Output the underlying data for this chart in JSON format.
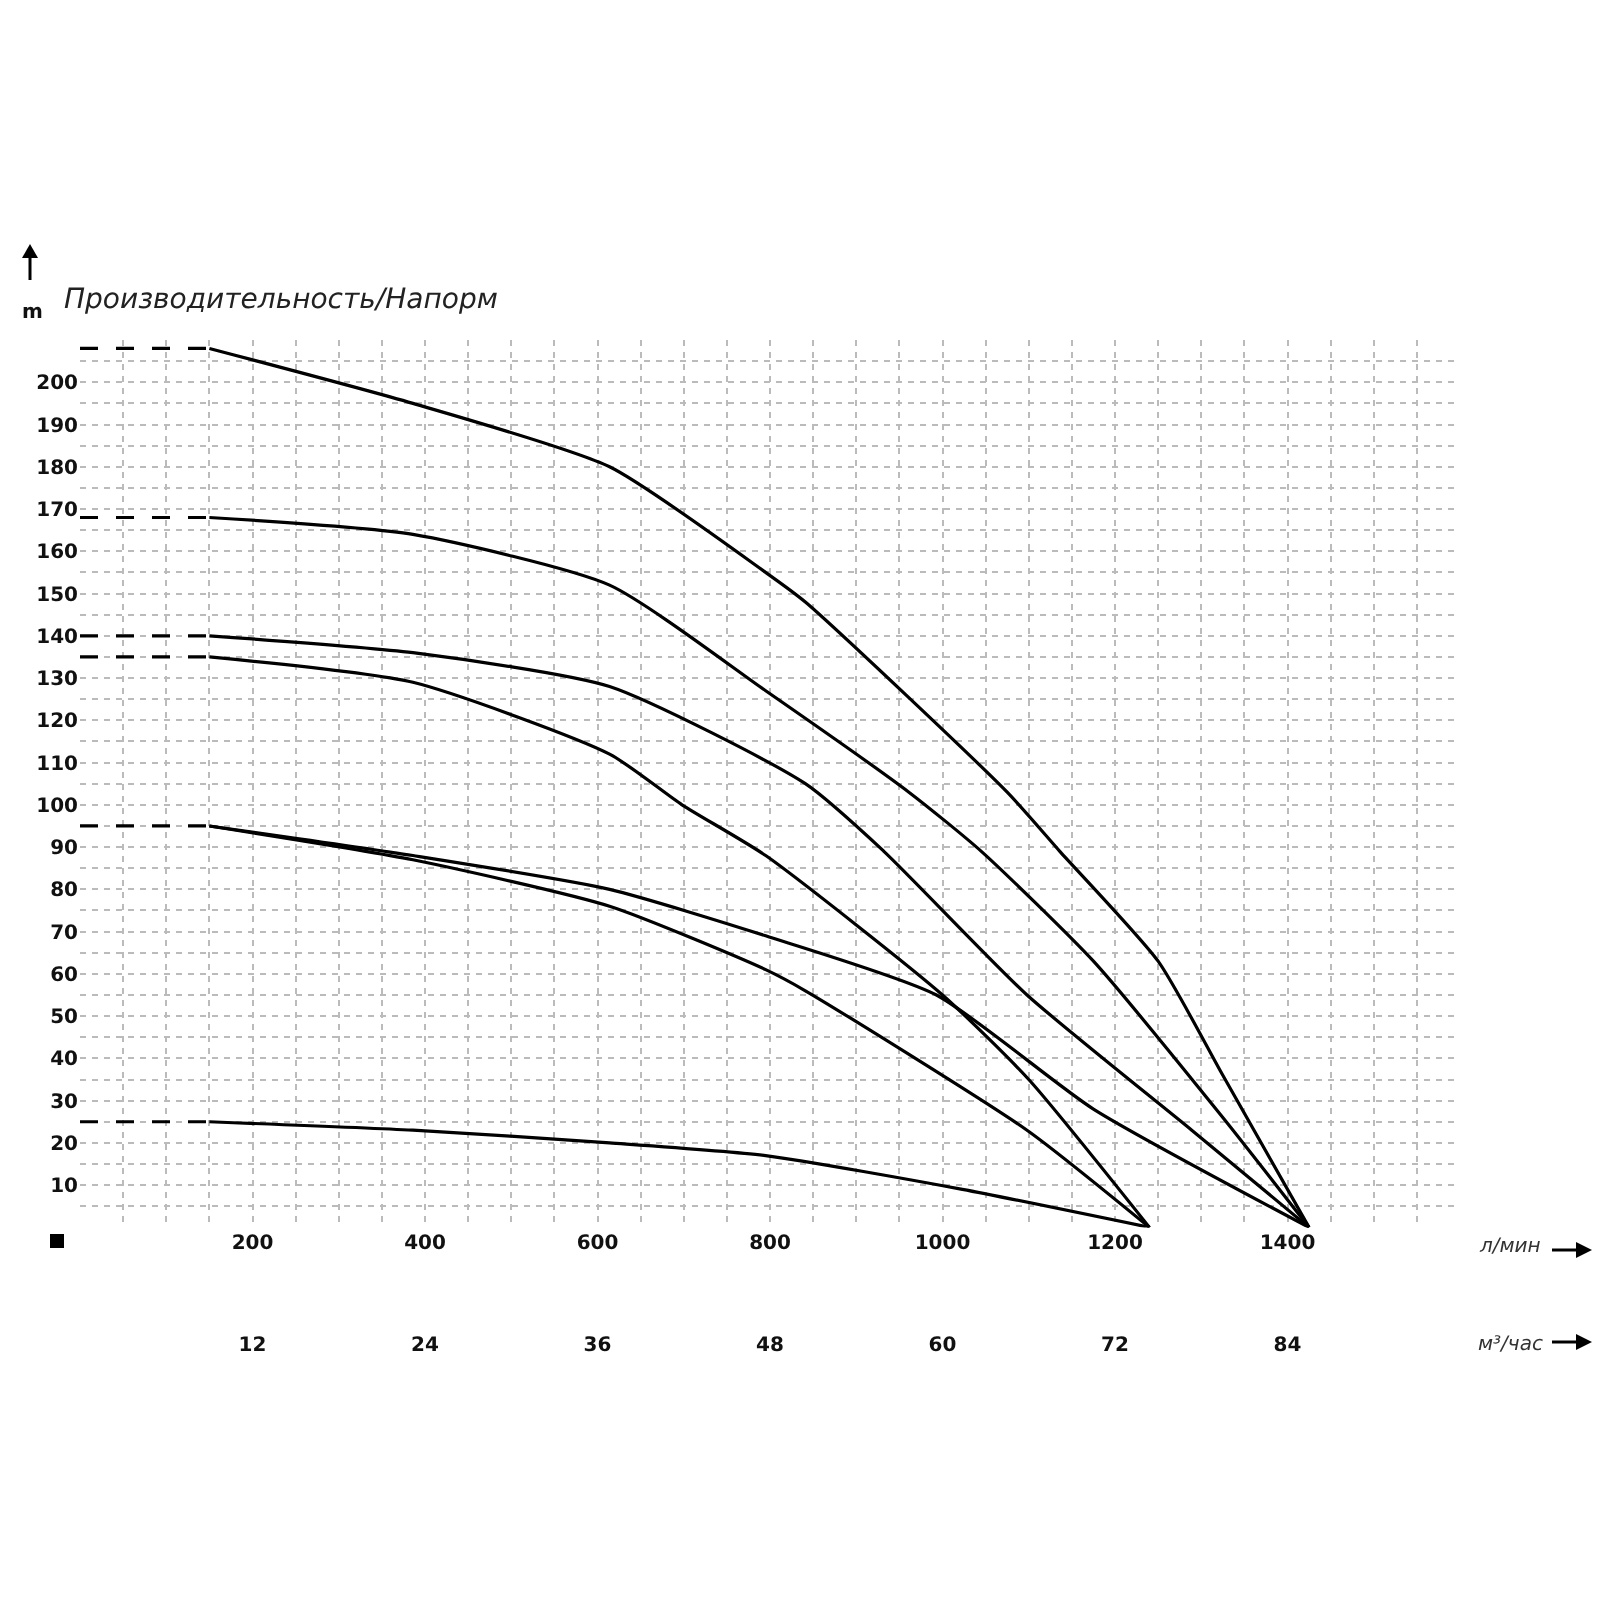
{
  "chart_data": {
    "type": "line",
    "title": "Производительность/Напорм",
    "ylabel": "m",
    "xlabel": "л/мин",
    "x2label": "м³/час",
    "xlim": [
      0,
      1600
    ],
    "ylim": [
      0,
      210
    ],
    "xticks": [
      {
        "value": 50,
        "label": null
      },
      {
        "value": 100,
        "label": null
      },
      {
        "value": 150,
        "label": null
      },
      200,
      {
        "value": 250,
        "label": null
      },
      {
        "value": 300,
        "label": null
      },
      {
        "value": 350,
        "label": null
      },
      400,
      {
        "value": 450,
        "label": null
      },
      {
        "value": 500,
        "label": null
      },
      {
        "value": 550,
        "label": null
      },
      600,
      {
        "value": 650,
        "label": null
      },
      {
        "value": 700,
        "label": null
      },
      {
        "value": 750,
        "label": null
      },
      800,
      {
        "value": 850,
        "label": null
      },
      {
        "value": 900,
        "label": null
      },
      {
        "value": 950,
        "label": null
      },
      1000,
      {
        "value": 1050,
        "label": null
      },
      {
        "value": 1100,
        "label": null
      },
      {
        "value": 1150,
        "label": null
      },
      1200,
      {
        "value": 1250,
        "label": null
      },
      {
        "value": 1300,
        "label": null
      },
      {
        "value": 1350,
        "label": null
      },
      1400,
      {
        "value": 1450,
        "label": null
      },
      {
        "value": 1500,
        "label": null
      },
      {
        "value": 1550,
        "label": null
      }
    ],
    "yticks": [
      {
        "value": 5,
        "label": null
      },
      10,
      {
        "value": 15,
        "label": null
      },
      20,
      {
        "value": 25,
        "label": null
      },
      30,
      {
        "value": 35,
        "label": null
      },
      40,
      {
        "value": 45,
        "label": null
      },
      50,
      {
        "value": 55,
        "label": null
      },
      60,
      {
        "value": 65,
        "label": null
      },
      70,
      {
        "value": 75,
        "label": null
      },
      80,
      {
        "value": 85,
        "label": null
      },
      90,
      {
        "value": 95,
        "label": null
      },
      100,
      {
        "value": 105,
        "label": null
      },
      110,
      {
        "value": 115,
        "label": null
      },
      120,
      {
        "value": 125,
        "label": null
      },
      130,
      {
        "value": 135,
        "label": null
      },
      140,
      {
        "value": 145,
        "label": null
      },
      150,
      {
        "value": 155,
        "label": null
      },
      160,
      {
        "value": 165,
        "label": null
      },
      170,
      {
        "value": 175,
        "label": null
      },
      180,
      {
        "value": 185,
        "label": null
      },
      190,
      {
        "value": 195,
        "label": null
      },
      200,
      {
        "value": 205,
        "label": null
      }
    ],
    "x2lim": [
      0,
      96
    ],
    "x2ticks": [
      12,
      24,
      36,
      48,
      60,
      72,
      84
    ],
    "grid": true,
    "line_style": "solid",
    "series": [
      {
        "color": "#000000",
        "line_style": "dashed",
        "x": [
          0,
          150
        ],
        "values": [
          208,
          208
        ]
      },
      {
        "color": "#000000",
        "x": [
          150,
          386,
          614,
          795,
          841,
          1075,
          1136,
          1250,
          1325,
          1425
        ],
        "values": [
          208,
          195,
          180,
          155,
          148,
          103,
          89,
          63,
          36,
          0
        ]
      },
      {
        "color": "#000000",
        "line_style": "dashed",
        "x": [
          0,
          150
        ],
        "values": [
          168,
          168
        ]
      },
      {
        "color": "#000000",
        "x": [
          150,
          386,
          614,
          795,
          961,
          1045,
          1175,
          1325,
          1425
        ],
        "values": [
          168,
          164,
          152,
          127,
          103,
          89,
          63,
          26,
          0
        ]
      },
      {
        "color": "#000000",
        "line_style": "dashed",
        "x": [
          0,
          150
        ],
        "values": [
          140,
          140
        ]
      },
      {
        "color": "#000000",
        "x": [
          150,
          386,
          614,
          841,
          932,
          1098,
          1289,
          1425
        ],
        "values": [
          140,
          136,
          128,
          105,
          89,
          55,
          23,
          0
        ]
      },
      {
        "color": "#000000",
        "line_style": "dashed",
        "x": [
          0,
          150
        ],
        "values": [
          135,
          135
        ]
      },
      {
        "color": "#000000",
        "x": [
          150,
          386,
          614,
          698,
          795,
          1000,
          1100,
          1240
        ],
        "values": [
          135,
          129,
          112,
          100,
          88,
          55,
          35,
          0
        ]
      },
      {
        "color": "#000000",
        "line_style": "dashed",
        "x": [
          0,
          150
        ],
        "values": [
          95,
          95
        ]
      },
      {
        "color": "#000000",
        "x": [
          150,
          386,
          614,
          795,
          993,
          1175,
          1425
        ],
        "values": [
          95,
          88,
          80,
          69,
          55,
          28,
          0
        ]
      },
      {
        "color": "#000000",
        "x": [
          150,
          386,
          614,
          795,
          841,
          1098,
          1240
        ],
        "values": [
          95,
          87,
          76,
          61,
          56,
          23,
          0
        ]
      },
      {
        "color": "#000000",
        "line_style": "dashed",
        "x": [
          0,
          150
        ],
        "values": [
          25,
          25
        ]
      },
      {
        "color": "#000000",
        "x": [
          150,
          386,
          614,
          795,
          1023,
          1240
        ],
        "values": [
          25,
          23,
          20,
          17,
          9,
          0
        ]
      }
    ]
  }
}
